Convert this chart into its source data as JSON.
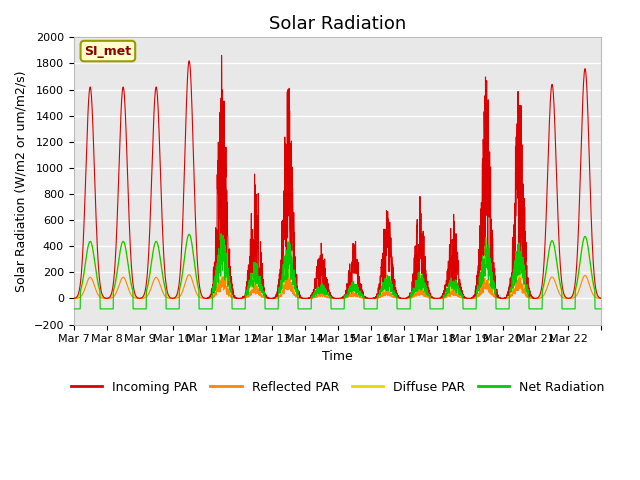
{
  "title": "Solar Radiation",
  "ylabel": "Solar Radiation (W/m2 or um/m2/s)",
  "xlabel": "Time",
  "ylim": [
    -200,
    2000
  ],
  "yticks": [
    -200,
    0,
    200,
    400,
    600,
    800,
    1000,
    1200,
    1400,
    1600,
    1800,
    2000
  ],
  "xtick_positions": [
    0,
    1,
    2,
    3,
    4,
    5,
    6,
    7,
    8,
    9,
    10,
    11,
    12,
    13,
    14,
    15,
    16
  ],
  "xtick_labels": [
    "Mar 7",
    "Mar 8",
    "Mar 9",
    "Mar 10",
    "Mar 11",
    "Mar 12",
    "Mar 13",
    "Mar 14",
    "Mar 15",
    "Mar 16",
    "Mar 17",
    "Mar 18",
    "Mar 19",
    "Mar 20",
    "Mar 21",
    "Mar 22",
    ""
  ],
  "annotation": "SI_met",
  "colors": {
    "incoming": "#dd0000",
    "reflected": "#ff8800",
    "diffuse": "#dddd00",
    "net": "#00cc00"
  },
  "legend_labels": [
    "Incoming PAR",
    "Reflected PAR",
    "Diffuse PAR",
    "Net Radiation"
  ],
  "background_color": "#e8e8e8",
  "grid_color": "#ffffff",
  "title_fontsize": 13,
  "label_fontsize": 9,
  "tick_fontsize": 8,
  "incoming_peaks": [
    1620,
    1620,
    1620,
    1820,
    1900,
    1060,
    1680,
    440,
    500,
    720,
    800,
    670,
    1770,
    1680,
    1640,
    1760
  ],
  "cloudy_days": [
    4,
    5,
    6,
    7,
    8,
    9,
    10,
    11,
    12,
    13
  ],
  "n_days": 16,
  "pts_per_day": 144
}
